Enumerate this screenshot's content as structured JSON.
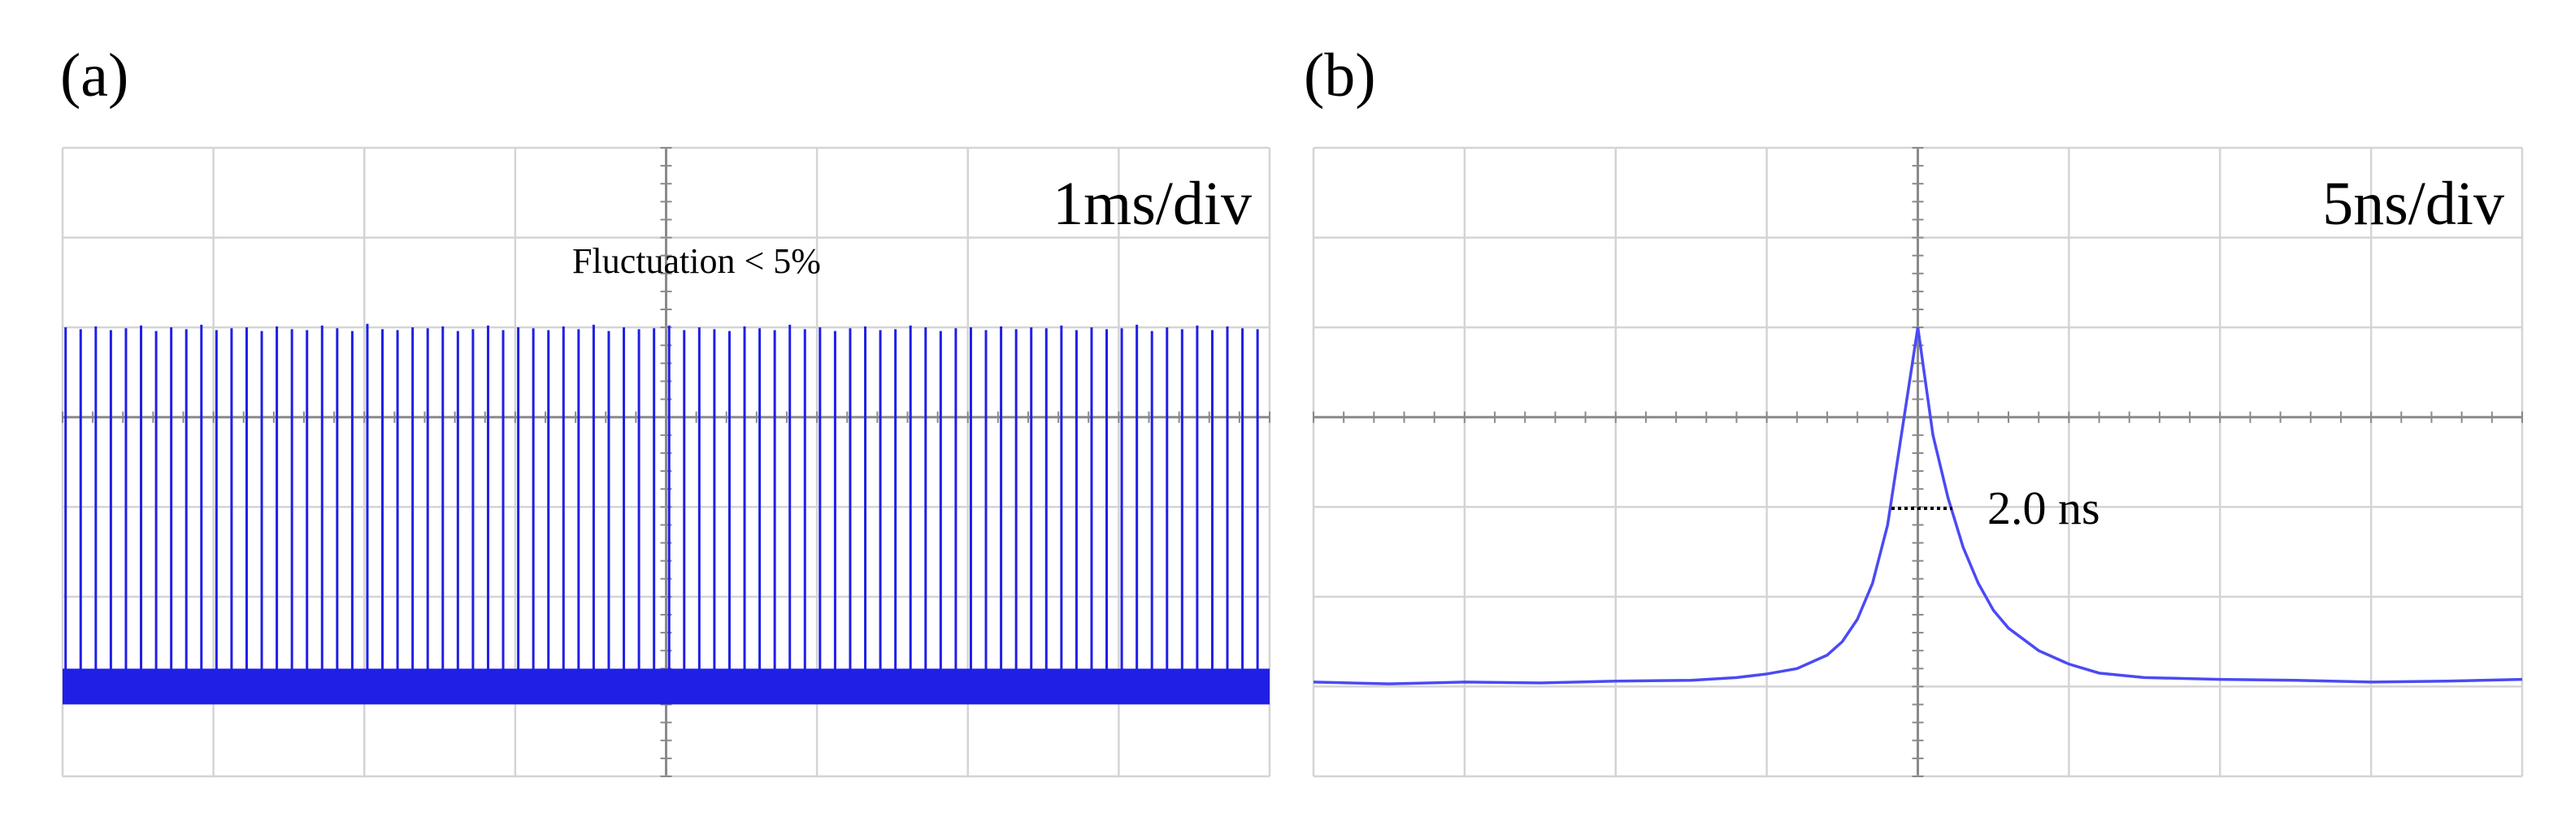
{
  "chart_data": [
    {
      "type": "stem",
      "panel_label": "(a)",
      "scale_label": "1ms/div",
      "annotation": "Fluctuation < 5%",
      "color": "#1f1fe6",
      "xlim": [
        -4,
        4
      ],
      "ylim": [
        -4,
        3
      ],
      "grid": true,
      "baseline": -3.0,
      "x": [
        -3.98,
        -3.88,
        -3.78,
        -3.68,
        -3.58,
        -3.48,
        -3.38,
        -3.28,
        -3.18,
        -3.08,
        -2.98,
        -2.88,
        -2.78,
        -2.68,
        -2.58,
        -2.48,
        -2.38,
        -2.28,
        -2.18,
        -2.08,
        -1.98,
        -1.88,
        -1.78,
        -1.68,
        -1.58,
        -1.48,
        -1.38,
        -1.28,
        -1.18,
        -1.08,
        -0.98,
        -0.88,
        -0.78,
        -0.68,
        -0.58,
        -0.48,
        -0.38,
        -0.28,
        -0.18,
        -0.08,
        0.02,
        0.12,
        0.22,
        0.32,
        0.42,
        0.52,
        0.62,
        0.72,
        0.82,
        0.92,
        1.02,
        1.12,
        1.22,
        1.32,
        1.42,
        1.52,
        1.62,
        1.72,
        1.82,
        1.92,
        2.02,
        2.12,
        2.22,
        2.32,
        2.42,
        2.52,
        2.62,
        2.72,
        2.82,
        2.92,
        3.02,
        3.12,
        3.22,
        3.32,
        3.42,
        3.52,
        3.62,
        3.72,
        3.82,
        3.92
      ],
      "values": [
        1.0,
        0.98,
        1.01,
        0.97,
        0.99,
        1.02,
        0.96,
        1.0,
        0.98,
        1.03,
        0.97,
        0.99,
        1.0,
        0.96,
        1.01,
        0.98,
        0.97,
        1.02,
        0.99,
        0.96,
        1.04,
        0.98,
        0.97,
        1.0,
        0.99,
        1.01,
        0.96,
        0.98,
        1.02,
        0.97,
        1.0,
        0.99,
        0.97,
        1.01,
        0.98,
        1.03,
        0.96,
        1.0,
        0.98,
        0.99,
        1.02,
        0.97,
        1.0,
        0.98,
        0.96,
        1.01,
        0.99,
        0.97,
        1.03,
        0.98,
        1.0,
        0.96,
        0.99,
        1.01,
        0.97,
        0.98,
        1.02,
        1.0,
        0.96,
        0.99,
        1.0,
        0.97,
        1.01,
        0.98,
        1.0,
        0.99,
        1.02,
        0.97,
        1.0,
        0.98,
        0.99,
        1.03,
        0.96,
        1.0,
        0.98,
        1.02,
        0.97,
        1.01,
        0.99,
        0.98
      ]
    },
    {
      "type": "line",
      "panel_label": "(b)",
      "scale_label": "5ns/div",
      "annotation": "2.0 ns",
      "color": "#4a4af5",
      "xlim": [
        -4,
        4
      ],
      "ylim": [
        -4,
        3
      ],
      "grid": true,
      "x": [
        -4,
        -3.5,
        -3,
        -2.5,
        -2,
        -1.5,
        -1.2,
        -1,
        -0.8,
        -0.6,
        -0.5,
        -0.4,
        -0.3,
        -0.2,
        -0.1,
        0,
        0.1,
        0.2,
        0.3,
        0.4,
        0.5,
        0.6,
        0.8,
        1,
        1.2,
        1.5,
        2,
        2.5,
        3,
        3.5,
        4
      ],
      "values": [
        -2.95,
        -2.97,
        -2.95,
        -2.96,
        -2.94,
        -2.93,
        -2.9,
        -2.86,
        -2.8,
        -2.65,
        -2.5,
        -2.25,
        -1.85,
        -1.2,
        -0.1,
        1.0,
        -0.2,
        -0.9,
        -1.45,
        -1.85,
        -2.15,
        -2.35,
        -2.6,
        -2.75,
        -2.85,
        -2.9,
        -2.92,
        -2.93,
        -2.95,
        -2.94,
        -2.92
      ]
    }
  ]
}
